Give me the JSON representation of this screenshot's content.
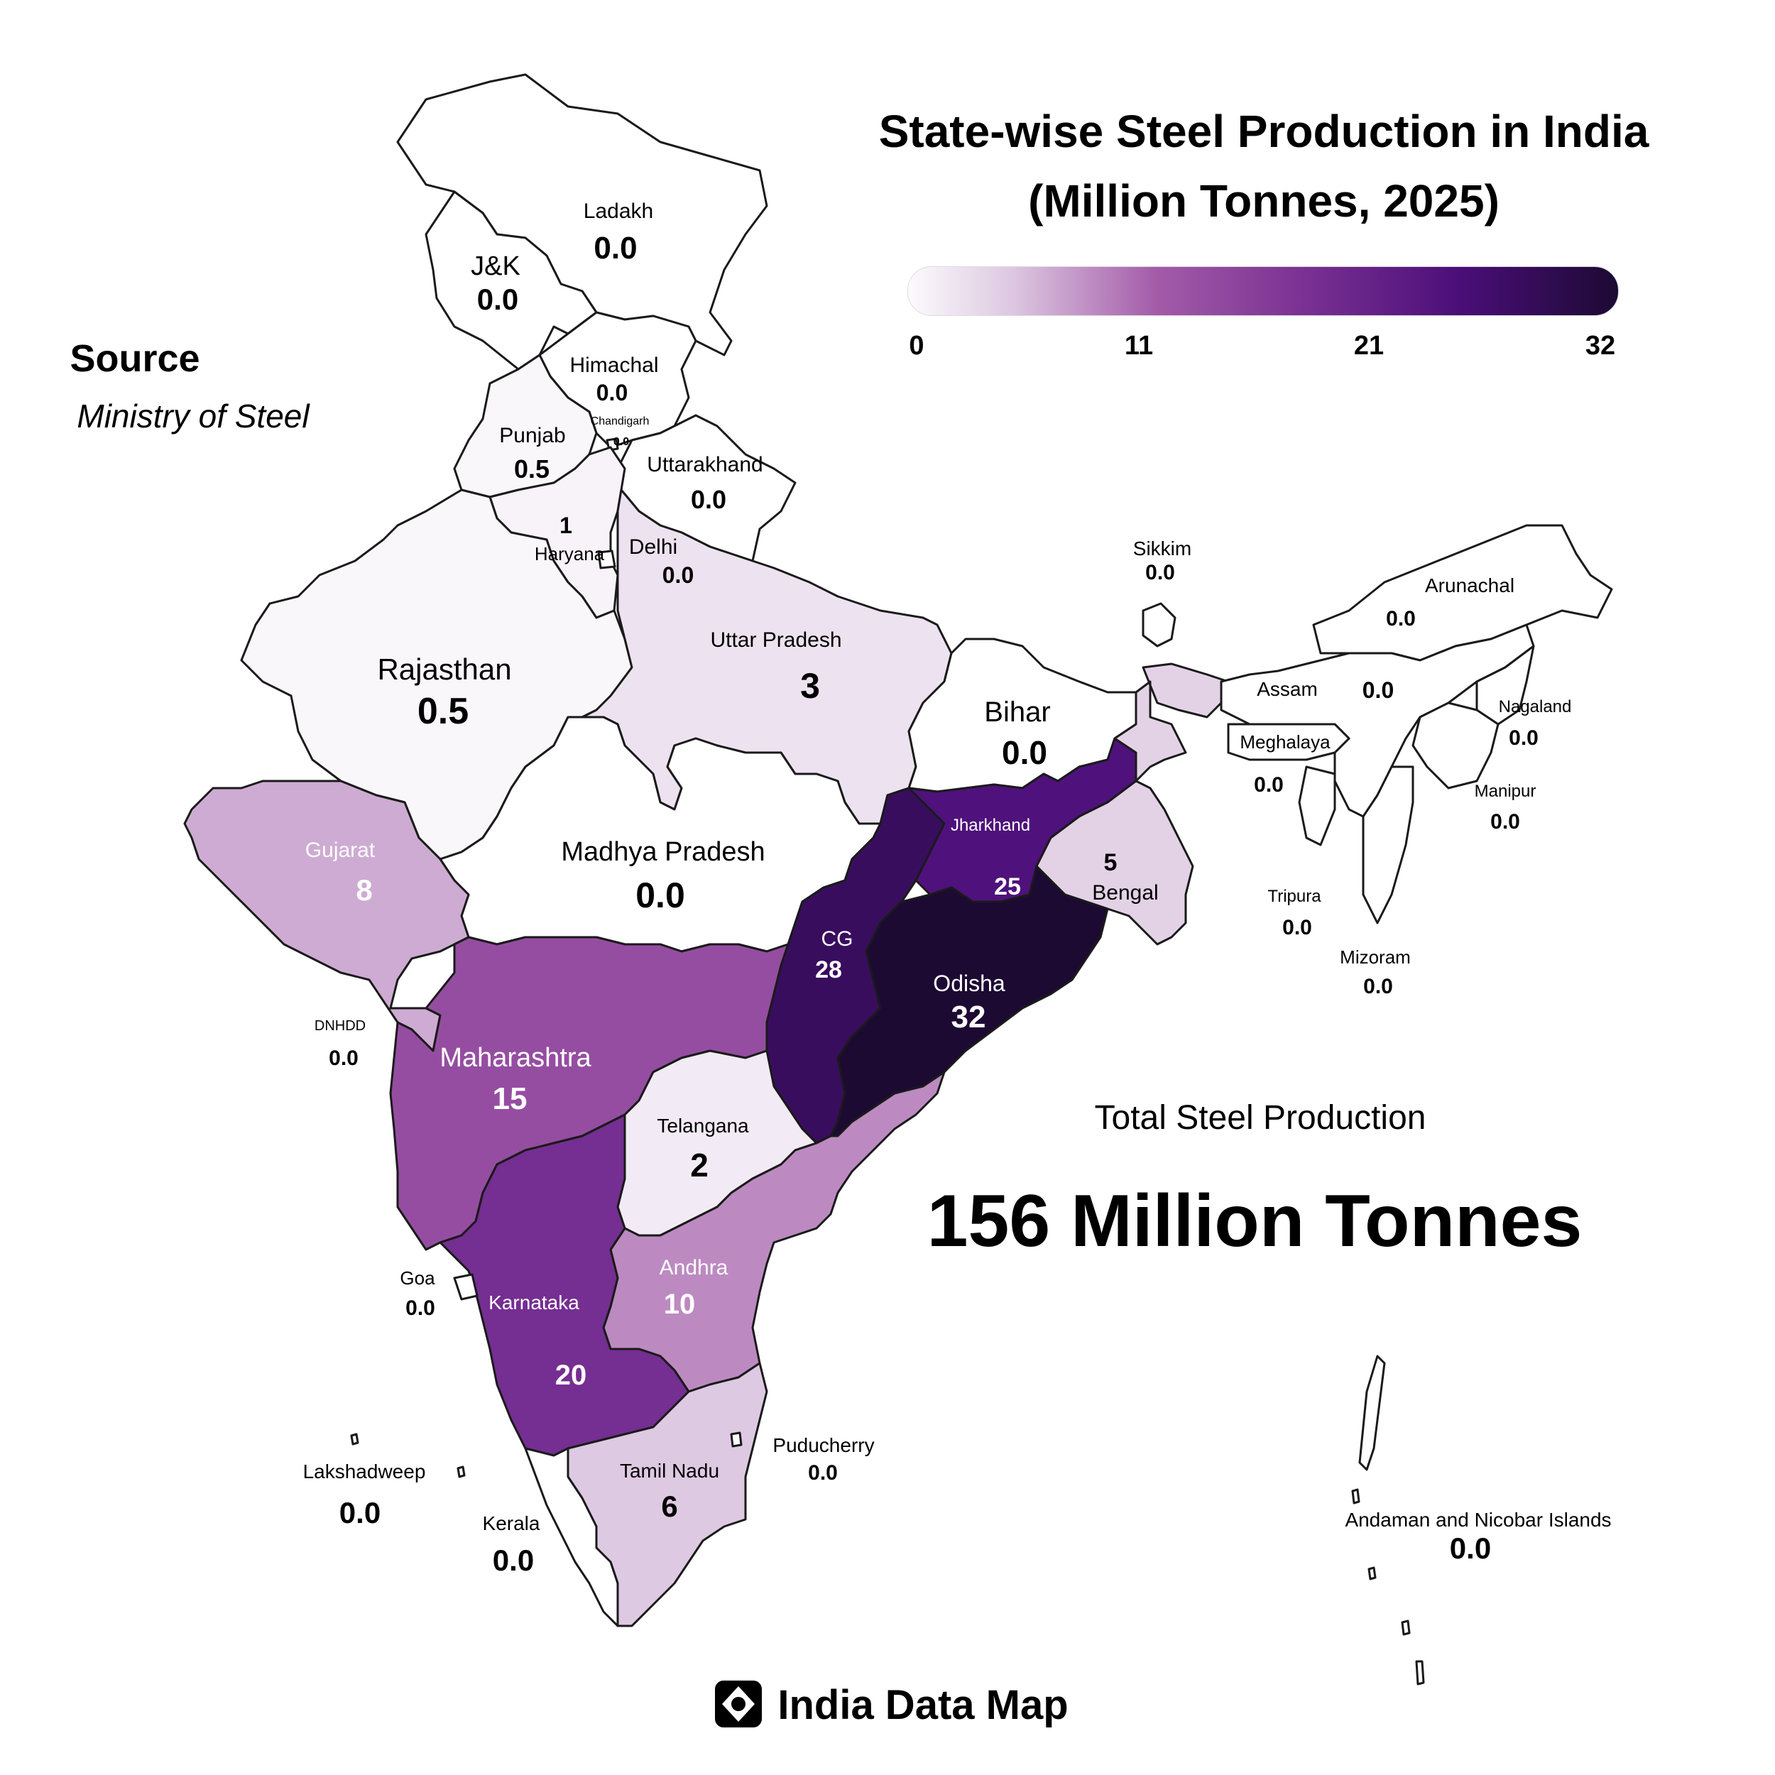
{
  "title_line1": "State-wise Steel Production in India",
  "title_line2": "(Million Tonnes, 2025)",
  "source": {
    "heading": "Source",
    "value": "Ministry of Steel"
  },
  "legend": {
    "ticks": [
      "0",
      "11",
      "21",
      "32"
    ],
    "min": 0,
    "max": 32,
    "colors": [
      "#fcfbfd",
      "#dcc6e0",
      "#a35ba8",
      "#7b3294",
      "#4a0e78",
      "#1c0a33"
    ]
  },
  "total": {
    "label": "Total Steel Production",
    "value": "156 Million Tonnes"
  },
  "brand": "India Data Map",
  "regions": [
    {
      "key": "ladakh",
      "name": "Ladakh",
      "value": "0.0",
      "amount": 0
    },
    {
      "key": "jk",
      "name": "J&K",
      "value": "0.0",
      "amount": 0
    },
    {
      "key": "himachal",
      "name": "Himachal",
      "value": "0.0",
      "amount": 0
    },
    {
      "key": "chandigarh",
      "name": "Chandigarh",
      "value": "0.0",
      "amount": 0
    },
    {
      "key": "punjab",
      "name": "Punjab",
      "value": "0.5",
      "amount": 0.5
    },
    {
      "key": "uttarakhand",
      "name": "Uttarakhand",
      "value": "0.0",
      "amount": 0
    },
    {
      "key": "haryana",
      "name": "Haryana",
      "value": "1",
      "amount": 1
    },
    {
      "key": "delhi",
      "name": "Delhi",
      "value": "0.0",
      "amount": 0
    },
    {
      "key": "rajasthan",
      "name": "Rajasthan",
      "value": "0.5",
      "amount": 0.5
    },
    {
      "key": "uttar-pradesh",
      "name": "Uttar Pradesh",
      "value": "3",
      "amount": 3
    },
    {
      "key": "bihar",
      "name": "Bihar",
      "value": "0.0",
      "amount": 0
    },
    {
      "key": "sikkim",
      "name": "Sikkim",
      "value": "0.0",
      "amount": 0
    },
    {
      "key": "arunachal",
      "name": "Arunachal",
      "value": "0.0",
      "amount": 0
    },
    {
      "key": "assam",
      "name": "Assam",
      "value": "0.0",
      "amount": 0
    },
    {
      "key": "nagaland",
      "name": "Nagaland",
      "value": "0.0",
      "amount": 0
    },
    {
      "key": "meghalaya",
      "name": "Meghalaya",
      "value": "0.0",
      "amount": 0
    },
    {
      "key": "manipur",
      "name": "Manipur",
      "value": "0.0",
      "amount": 0
    },
    {
      "key": "tripura",
      "name": "Tripura",
      "value": "0.0",
      "amount": 0
    },
    {
      "key": "mizoram",
      "name": "Mizoram",
      "value": "0.0",
      "amount": 0
    },
    {
      "key": "gujarat",
      "name": "Gujarat",
      "value": "8",
      "amount": 8
    },
    {
      "key": "madhya-pradesh",
      "name": "Madhya Pradesh",
      "value": "0.0",
      "amount": 0
    },
    {
      "key": "jharkhand",
      "name": "Jharkhand",
      "value": "25",
      "amount": 25
    },
    {
      "key": "bengal",
      "name": "Bengal",
      "value": "5",
      "amount": 5
    },
    {
      "key": "cg",
      "name": "CG",
      "value": "28",
      "amount": 28
    },
    {
      "key": "odisha",
      "name": "Odisha",
      "value": "32",
      "amount": 32
    },
    {
      "key": "dnhdd",
      "name": "DNHDD",
      "value": "0.0",
      "amount": 0
    },
    {
      "key": "maharashtra",
      "name": "Maharashtra",
      "value": "15",
      "amount": 15
    },
    {
      "key": "telangana",
      "name": "Telangana",
      "value": "2",
      "amount": 2
    },
    {
      "key": "goa",
      "name": "Goa",
      "value": "0.0",
      "amount": 0
    },
    {
      "key": "karnataka",
      "name": "Karnataka",
      "value": "20",
      "amount": 20
    },
    {
      "key": "andhra",
      "name": "Andhra",
      "value": "10",
      "amount": 10
    },
    {
      "key": "puducherry",
      "name": "Puducherry",
      "value": "0.0",
      "amount": 0
    },
    {
      "key": "tamil-nadu",
      "name": "Tamil Nadu",
      "value": "6",
      "amount": 6
    },
    {
      "key": "lakshadweep",
      "name": "Lakshadweep",
      "value": "0.0",
      "amount": 0
    },
    {
      "key": "kerala",
      "name": "Kerala",
      "value": "0.0",
      "amount": 0
    },
    {
      "key": "andaman",
      "name": "Andaman and Nicobar Islands",
      "value": "0.0",
      "amount": 0
    }
  ]
}
